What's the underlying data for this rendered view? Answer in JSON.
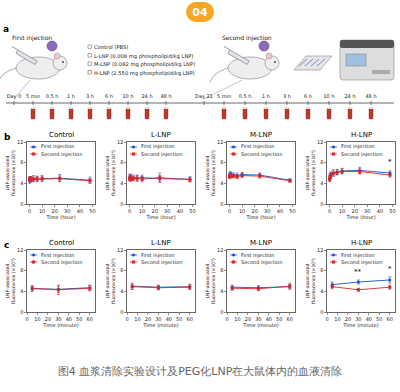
{
  "badge": "04",
  "panel_labels": [
    "a",
    "b",
    "c"
  ],
  "schematic": {
    "first_injection": "First injection",
    "second_injection": "Second injection",
    "groups": [
      "Control (PBS)",
      "L-LNP (0.008 mg phospholipid/kg LNP)",
      "M-LNP (0.082 mg phospholipid/kg LNP)",
      "H-LNP (2.550 mg phospholipid/kg LNP)"
    ],
    "timeline_first": [
      "Day 0",
      "5 min",
      "0.5 h",
      "1 h",
      "3 h",
      "6 h",
      "10 h",
      "24 h",
      "48 h"
    ],
    "timeline_second": [
      "Day 21",
      "5 min",
      "0.5 h",
      "1 h",
      "3 h",
      "6 h",
      "10 h",
      "24 h",
      "48 h"
    ]
  },
  "chart_data": [
    {
      "type": "line",
      "title": "Control",
      "x_label": "Time (hour)",
      "y_label": "LNP-associated fluorescence (×10⁵)",
      "x": [
        0.083,
        0.5,
        1,
        3,
        6,
        10,
        24,
        48
      ],
      "series": [
        {
          "name": "First injection",
          "color": "#1f4fd1",
          "marker": "circle",
          "values": [
            4.6,
            4.7,
            4.8,
            4.9,
            4.8,
            4.9,
            5.0,
            4.6
          ],
          "errors": [
            0.6,
            0.5,
            0.5,
            0.6,
            0.5,
            0.6,
            0.7,
            0.6
          ]
        },
        {
          "name": "Second injection",
          "color": "#d62728",
          "marker": "square",
          "values": [
            4.8,
            4.9,
            4.8,
            4.8,
            4.9,
            4.9,
            4.9,
            4.5
          ],
          "errors": [
            0.4,
            0.4,
            0.5,
            0.4,
            0.5,
            0.4,
            0.5,
            0.4
          ]
        }
      ],
      "xlim": [
        -2,
        52
      ],
      "xticks": [
        0,
        10,
        20,
        30,
        40,
        50
      ],
      "ylim": [
        0,
        12
      ],
      "yticks": [
        0,
        4,
        8,
        12
      ],
      "grid": false,
      "legend": "top left"
    },
    {
      "type": "line",
      "title": "L-LNP",
      "x_label": "Time (hour)",
      "y_label": "LNP-associated fluorescence (×10⁵)",
      "x": [
        0.083,
        0.5,
        1,
        3,
        6,
        10,
        24,
        48
      ],
      "series": [
        {
          "name": "First injection",
          "color": "#1f4fd1",
          "marker": "circle",
          "values": [
            5.1,
            5.2,
            5.0,
            5.1,
            5.0,
            5.1,
            4.9,
            4.8
          ],
          "errors": [
            0.5,
            0.6,
            0.5,
            0.5,
            0.6,
            0.5,
            0.6,
            0.5
          ]
        },
        {
          "name": "Second injection",
          "color": "#d62728",
          "marker": "square",
          "values": [
            5.0,
            4.9,
            5.1,
            4.9,
            5.0,
            4.8,
            5.1,
            4.7
          ],
          "errors": [
            0.4,
            0.5,
            0.6,
            0.4,
            0.5,
            0.5,
            0.9,
            0.4
          ]
        }
      ],
      "xlim": [
        -2,
        52
      ],
      "xticks": [
        0,
        10,
        20,
        30,
        40,
        50
      ],
      "ylim": [
        0,
        12
      ],
      "yticks": [
        0,
        4,
        8,
        12
      ],
      "grid": false,
      "legend": "top left"
    },
    {
      "type": "line",
      "title": "M-LNP",
      "x_label": "Time (hour)",
      "y_label": "LNP-associated fluorescence (×10⁵)",
      "x": [
        0.083,
        0.5,
        1,
        3,
        6,
        10,
        24,
        48
      ],
      "series": [
        {
          "name": "First injection",
          "color": "#1f4fd1",
          "marker": "circle",
          "values": [
            5.6,
            5.8,
            5.7,
            5.6,
            5.5,
            5.7,
            5.6,
            4.6
          ],
          "errors": [
            0.4,
            0.5,
            0.4,
            0.4,
            0.5,
            0.4,
            0.4,
            0.3
          ]
        },
        {
          "name": "Second injection",
          "color": "#d62728",
          "marker": "square",
          "values": [
            5.3,
            5.4,
            5.5,
            5.4,
            5.3,
            5.5,
            5.4,
            4.5
          ],
          "errors": [
            0.4,
            0.4,
            0.4,
            0.3,
            0.4,
            0.4,
            0.4,
            0.3
          ]
        }
      ],
      "xlim": [
        -2,
        52
      ],
      "xticks": [
        0,
        10,
        20,
        30,
        40,
        50
      ],
      "ylim": [
        0,
        12
      ],
      "yticks": [
        0,
        4,
        8,
        12
      ],
      "grid": false,
      "legend": "top left"
    },
    {
      "type": "line",
      "title": "H-LNP",
      "x_label": "Time (hour)",
      "y_label": "LNP-associated fluorescence (×10⁵)",
      "x": [
        0.083,
        0.5,
        1,
        3,
        6,
        10,
        24,
        48
      ],
      "series": [
        {
          "name": "First injection",
          "color": "#1f4fd1",
          "marker": "circle",
          "values": [
            5.0,
            5.4,
            5.6,
            6.0,
            6.2,
            6.4,
            6.5,
            6.0
          ],
          "errors": [
            0.5,
            0.5,
            0.6,
            0.6,
            0.5,
            0.5,
            0.6,
            0.4
          ]
        },
        {
          "name": "Second injection",
          "color": "#d62728",
          "marker": "square",
          "values": [
            4.8,
            5.2,
            5.5,
            5.9,
            6.1,
            6.3,
            6.3,
            5.6
          ],
          "errors": [
            0.5,
            0.6,
            0.6,
            0.5,
            0.5,
            0.5,
            0.5,
            0.4
          ]
        }
      ],
      "annotations": [
        {
          "x": 48,
          "y": 7.0,
          "text": "*"
        }
      ],
      "xlim": [
        -2,
        52
      ],
      "xticks": [
        0,
        10,
        20,
        30,
        40,
        50
      ],
      "ylim": [
        0,
        12
      ],
      "yticks": [
        0,
        4,
        8,
        12
      ],
      "grid": false,
      "legend": "top left"
    },
    {
      "type": "line",
      "title": "Control",
      "x_label": "Time (minute)",
      "y_label": "LNP-associated fluorescence (×10⁵)",
      "x": [
        5,
        30,
        60
      ],
      "series": [
        {
          "name": "First injection",
          "color": "#1f4fd1",
          "marker": "circle",
          "values": [
            4.5,
            4.4,
            4.7
          ],
          "errors": [
            0.5,
            0.6,
            0.5
          ]
        },
        {
          "name": "Second injection",
          "color": "#d62728",
          "marker": "square",
          "values": [
            4.6,
            4.3,
            4.6
          ],
          "errors": [
            0.5,
            0.9,
            0.5
          ]
        }
      ],
      "xlim": [
        0,
        65
      ],
      "xticks": [
        0,
        10,
        20,
        30,
        40,
        50,
        60
      ],
      "ylim": [
        0,
        12
      ],
      "yticks": [
        0,
        4,
        8,
        12
      ],
      "grid": false,
      "legend": "top left"
    },
    {
      "type": "line",
      "title": "L-LNP",
      "x_label": "Time (minute)",
      "y_label": "LNP-associated fluorescence (×10⁵)",
      "x": [
        5,
        30,
        60
      ],
      "series": [
        {
          "name": "First injection",
          "color": "#1f4fd1",
          "marker": "circle",
          "values": [
            5.0,
            4.8,
            4.9
          ],
          "errors": [
            0.6,
            0.4,
            0.5
          ]
        },
        {
          "name": "Second injection",
          "color": "#d62728",
          "marker": "square",
          "values": [
            4.9,
            4.7,
            4.8
          ],
          "errors": [
            0.5,
            0.4,
            0.4
          ]
        }
      ],
      "xlim": [
        0,
        65
      ],
      "xticks": [
        0,
        10,
        20,
        30,
        40,
        50,
        60
      ],
      "ylim": [
        0,
        12
      ],
      "yticks": [
        0,
        4,
        8,
        12
      ],
      "grid": false,
      "legend": "top left"
    },
    {
      "type": "line",
      "title": "M-LNP",
      "x_label": "Time (minute)",
      "y_label": "LNP-associated fluorescence (×10⁵)",
      "x": [
        5,
        30,
        60
      ],
      "series": [
        {
          "name": "First injection",
          "color": "#1f4fd1",
          "marker": "circle",
          "values": [
            4.8,
            4.7,
            4.9
          ],
          "errors": [
            0.4,
            0.4,
            0.4
          ]
        },
        {
          "name": "Second injection",
          "color": "#d62728",
          "marker": "square",
          "values": [
            4.6,
            4.5,
            5.0
          ],
          "errors": [
            0.4,
            0.4,
            0.6
          ]
        }
      ],
      "xlim": [
        0,
        65
      ],
      "xticks": [
        0,
        10,
        20,
        30,
        40,
        50,
        60
      ],
      "ylim": [
        0,
        12
      ],
      "yticks": [
        0,
        4,
        8,
        12
      ],
      "grid": false,
      "legend": "top left"
    },
    {
      "type": "line",
      "title": "H-LNP",
      "x_label": "Time (minute)",
      "y_label": "LNP-associated fluorescence (×10⁵)",
      "x": [
        5,
        30,
        60
      ],
      "series": [
        {
          "name": "First injection",
          "color": "#1f4fd1",
          "marker": "circle",
          "values": [
            5.3,
            5.8,
            6.2
          ],
          "errors": [
            0.5,
            0.4,
            0.6
          ]
        },
        {
          "name": "Second injection",
          "color": "#d62728",
          "marker": "square",
          "values": [
            4.9,
            4.3,
            4.8
          ],
          "errors": [
            0.4,
            0.3,
            0.4
          ]
        }
      ],
      "annotations": [
        {
          "x": 30,
          "y": 6.6,
          "text": "**"
        },
        {
          "x": 60,
          "y": 7.2,
          "text": "*"
        }
      ],
      "xlim": [
        0,
        65
      ],
      "xticks": [
        0,
        10,
        20,
        30,
        40,
        50,
        60
      ],
      "ylim": [
        0,
        12
      ],
      "yticks": [
        0,
        4,
        8,
        12
      ],
      "grid": false,
      "legend": "top left"
    }
  ],
  "caption": "图4 血浆清除实验设计及PEG化LNP在大鼠体内的血液清除"
}
